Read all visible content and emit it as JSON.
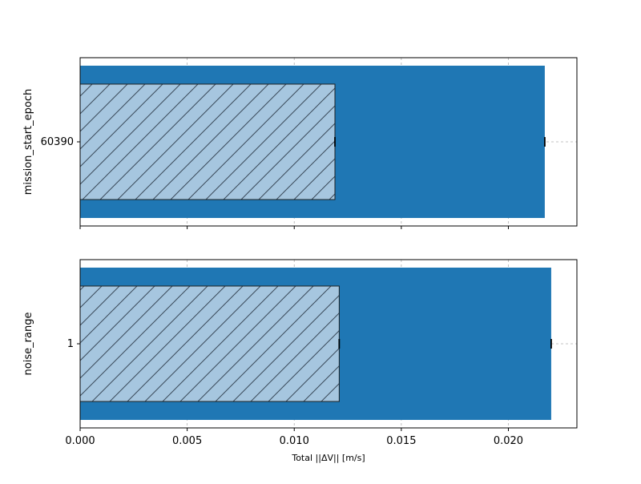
{
  "chart_data": {
    "type": "bar",
    "orientation": "horizontal",
    "xlabel": "Total ||ΔV|| [m/s]",
    "xlim": [
      0,
      0.0232
    ],
    "xticks": [
      "0.000",
      "0.005",
      "0.010",
      "0.015",
      "0.020"
    ],
    "grid": true,
    "colors": {
      "outer": "#1f77b4",
      "inner": "#a6c6df",
      "hatch": "#3a4a5a"
    },
    "panels": [
      {
        "ylabel": "mission_start_epoch",
        "category": "60390",
        "series": [
          {
            "style": "solid",
            "value": 0.0217
          },
          {
            "style": "hatched",
            "value": 0.0119
          }
        ]
      },
      {
        "ylabel": "noise_range",
        "category": "1",
        "series": [
          {
            "style": "solid",
            "value": 0.022
          },
          {
            "style": "hatched",
            "value": 0.0121
          }
        ]
      }
    ]
  }
}
